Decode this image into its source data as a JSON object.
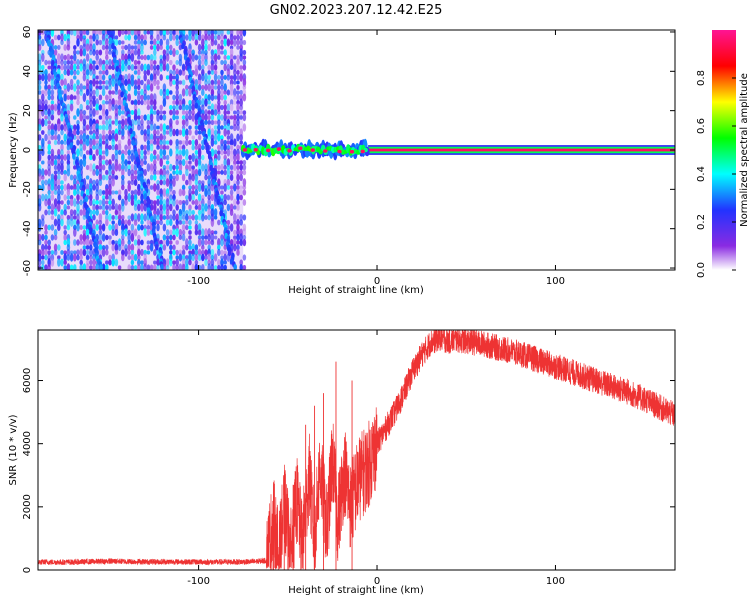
{
  "title": "GN02.2023.207.12.42.E25",
  "chart_data": [
    {
      "type": "heatmap",
      "title": "GN02.2023.207.12.42.E25",
      "xlabel": "Height of straight line (km)",
      "ylabel": "Frequency (Hz)",
      "xlim": [
        -190,
        167
      ],
      "ylim": [
        -61,
        61
      ],
      "x_ticks": [
        -100,
        0,
        100
      ],
      "y_ticks": [
        -60,
        -40,
        -20,
        0,
        20,
        40,
        60
      ],
      "colorbar": {
        "label": "Normalized spectral amplitude",
        "range": [
          0,
          1
        ],
        "ticks": [
          0.0,
          0.2,
          0.4,
          0.6,
          0.8
        ]
      },
      "regions": [
        {
          "name": "broadband",
          "x": [
            -190,
            -75
          ],
          "freq": [
            -61,
            61
          ],
          "amplitude_range": [
            0.05,
            0.4
          ],
          "diagonal_streaks": [
            {
              "x_start": -185,
              "y_start": 60,
              "x_end": -155,
              "y_end": -60
            },
            {
              "x_start": -150,
              "y_start": 60,
              "x_end": -120,
              "y_end": -60
            },
            {
              "x_start": -110,
              "y_start": 60,
              "x_end": -80,
              "y_end": -60
            }
          ]
        },
        {
          "name": "narrowband-transition",
          "x": [
            -75,
            -5
          ],
          "center_freq": 0,
          "spread_hz": 5,
          "peak_amplitude": 0.95,
          "core_centers": [
            -74,
            -68,
            -61,
            -55,
            -49,
            -43,
            -36,
            -29,
            -21,
            -14,
            -8
          ]
        },
        {
          "name": "steady-line",
          "x": [
            -5,
            167
          ],
          "center_freq": 0,
          "spread_hz": 2.5,
          "peak_amplitude": 0.95
        }
      ]
    },
    {
      "type": "line",
      "xlabel": "Height of straight line (km)",
      "ylabel": "SNR (10 * v/v)",
      "xlim": [
        -190,
        167
      ],
      "ylim": [
        0,
        7600
      ],
      "x_ticks": [
        -100,
        0,
        100
      ],
      "y_ticks": [
        0,
        2000,
        4000,
        6000
      ],
      "color": "#ee3333",
      "series": [
        {
          "x": [
            -190,
            -170,
            -150,
            -130,
            -110,
            -90,
            -70,
            -62,
            -58,
            -55,
            -52,
            -48,
            -45,
            -42,
            -38,
            -35,
            -32,
            -28,
            -25,
            -22,
            -18,
            -15,
            -10,
            -5,
            0,
            5,
            10,
            15,
            20,
            25,
            30,
            35,
            40,
            45,
            50,
            60,
            70,
            80,
            90,
            100,
            110,
            120,
            130,
            140,
            150,
            160,
            167
          ],
          "y": [
            250,
            250,
            280,
            260,
            260,
            250,
            260,
            300,
            1600,
            400,
            2000,
            500,
            2300,
            800,
            3000,
            900,
            3300,
            1200,
            3600,
            1600,
            3200,
            2000,
            2900,
            3300,
            4000,
            4500,
            5000,
            5600,
            6300,
            6800,
            7200,
            7350,
            7250,
            7300,
            7250,
            7150,
            7000,
            6850,
            6650,
            6450,
            6250,
            6050,
            5850,
            5650,
            5400,
            5100,
            4900
          ],
          "noise": 420
        },
        {
          "name": "spikes",
          "x": [
            -58,
            -52,
            -47,
            -40,
            -35,
            -30,
            -23,
            -14
          ],
          "y": [
            2200,
            3000,
            2700,
            4600,
            5200,
            5600,
            6600,
            6000
          ]
        }
      ]
    }
  ]
}
